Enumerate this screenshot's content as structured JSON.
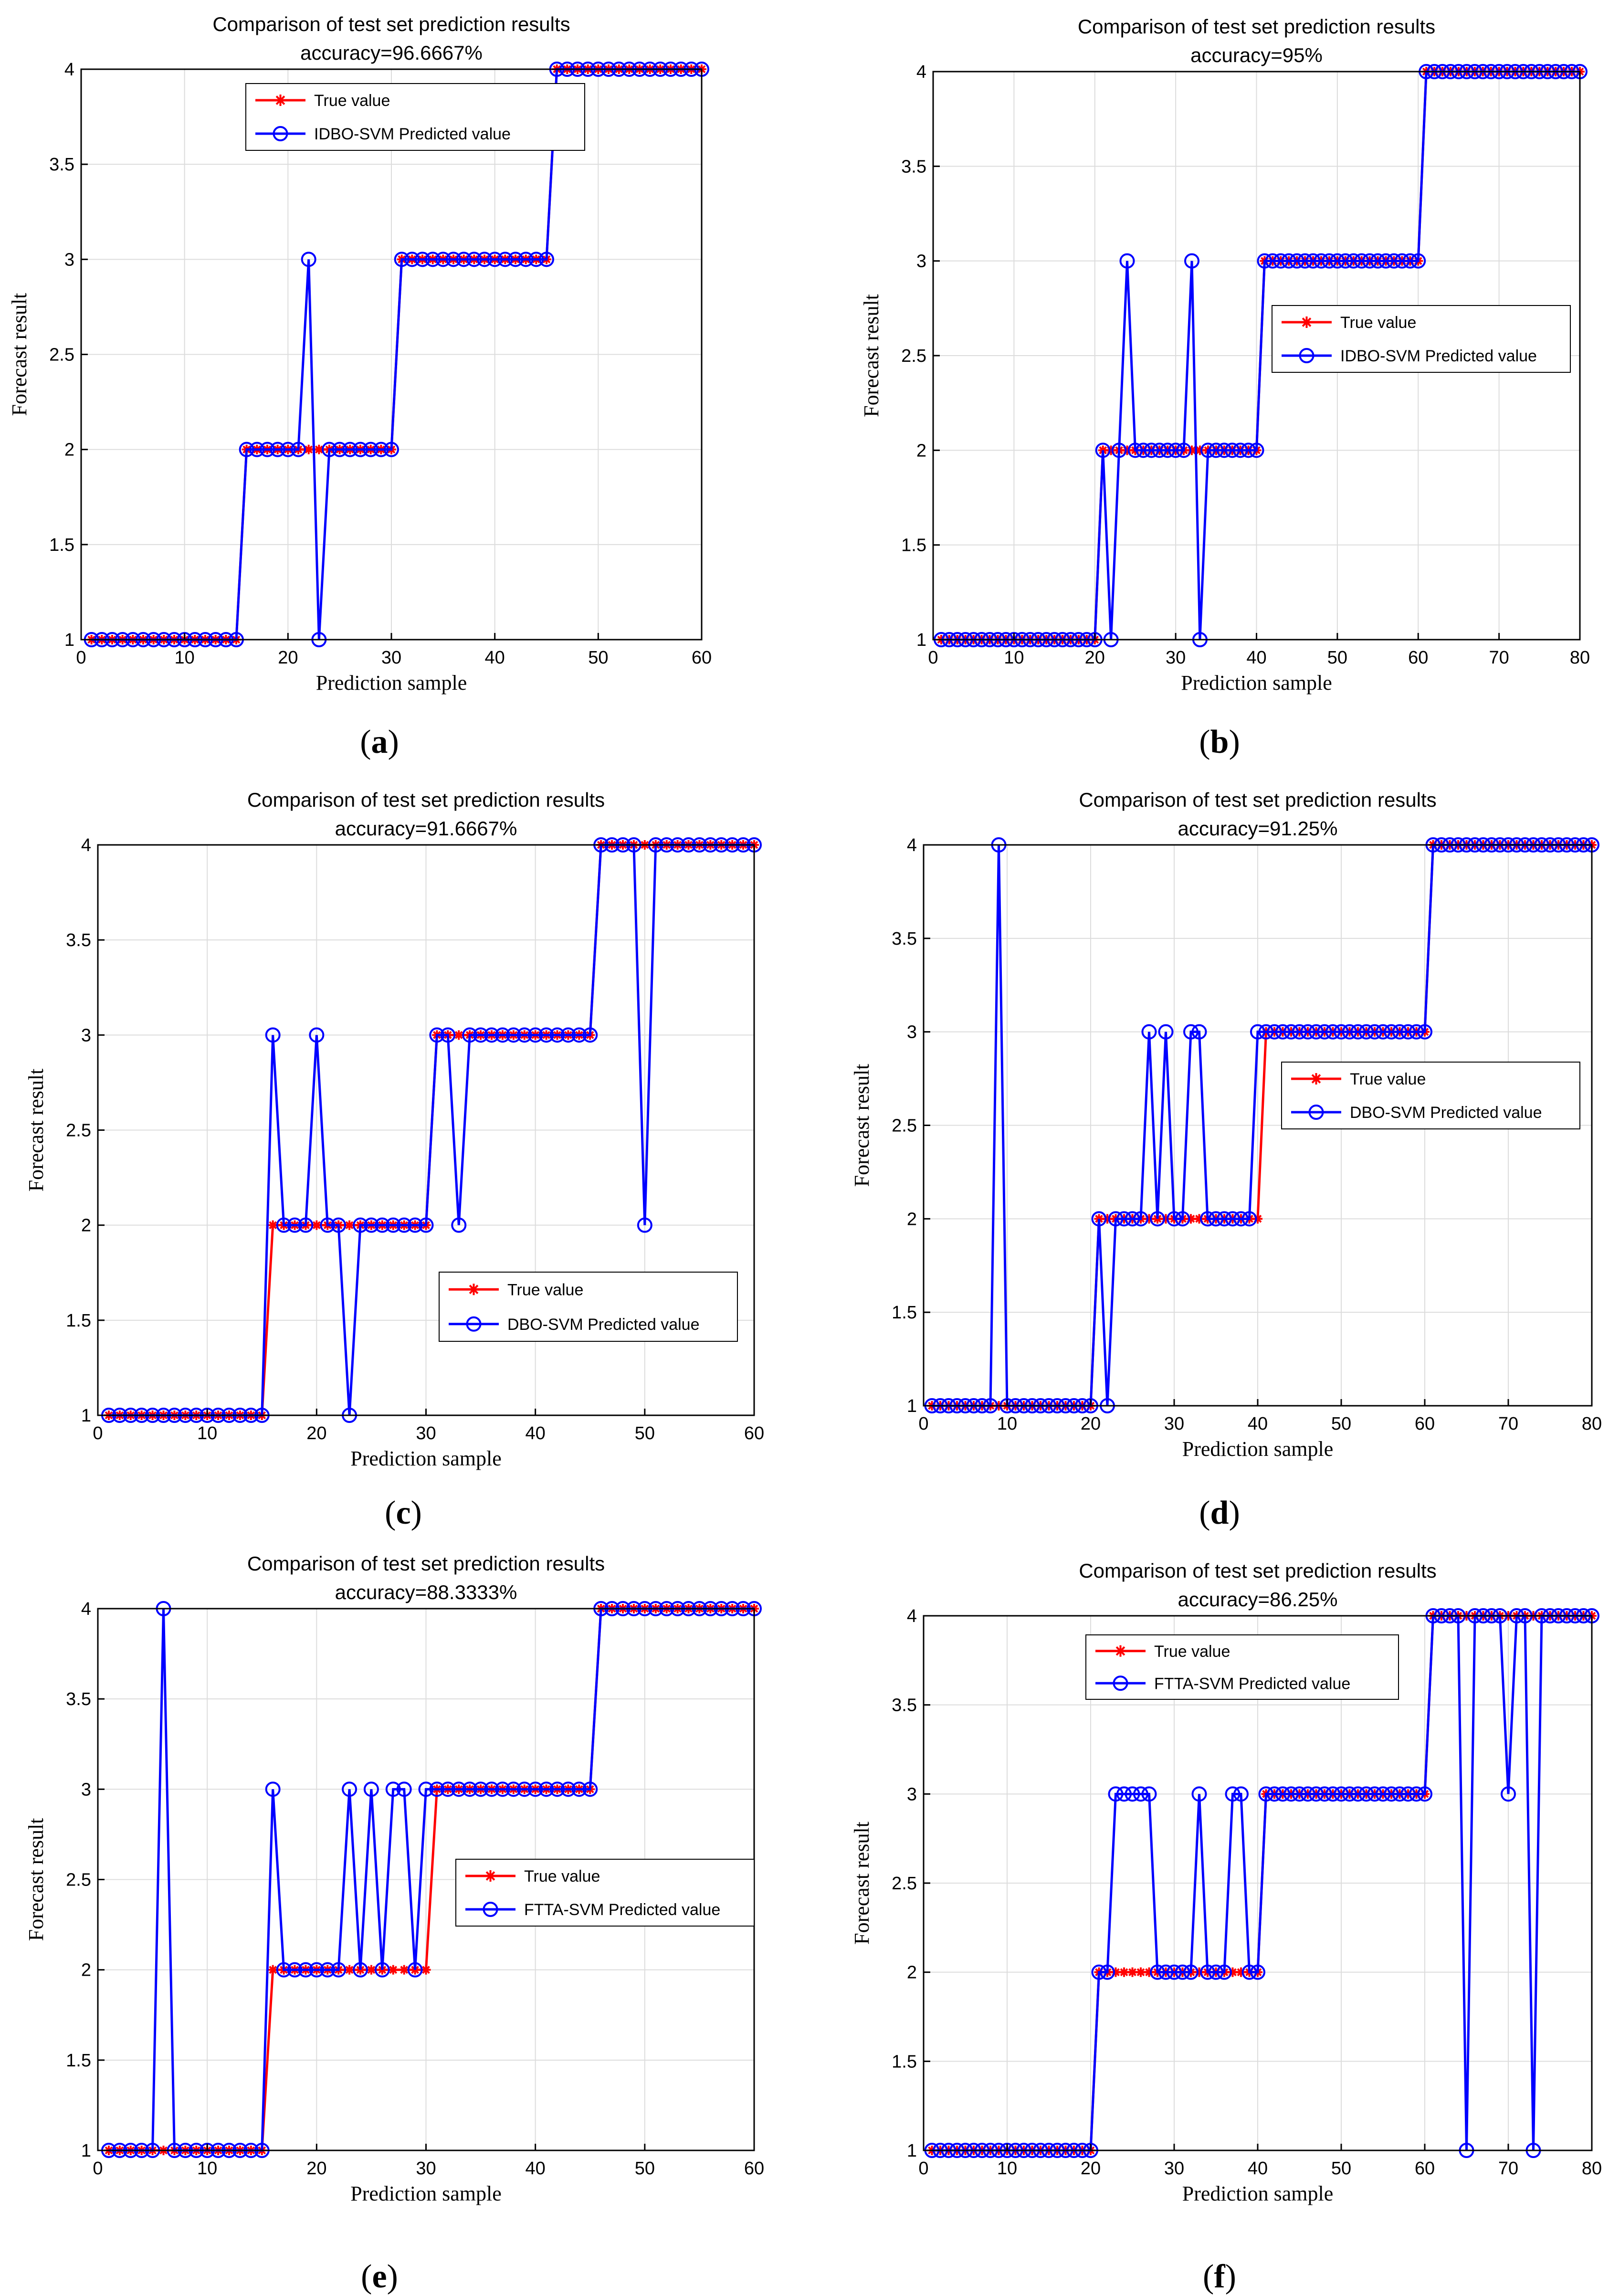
{
  "colors": {
    "true": "#ff0000",
    "pred": "#0000ff",
    "grid": "#dcdcdc",
    "axis": "#000000"
  },
  "chart_data": [
    {
      "type": "line",
      "caption_letter": "a",
      "title": "Comparison of test set prediction results",
      "subtitle": "accuracy=96.6667%",
      "xlabel": "Prediction sample",
      "ylabel": "Forecast result",
      "xlim": [
        0,
        60
      ],
      "ylim": [
        1,
        4
      ],
      "xticks": [
        0,
        10,
        20,
        30,
        40,
        50,
        60
      ],
      "yticks": [
        1,
        1.5,
        2,
        2.5,
        3,
        3.5,
        4
      ],
      "legend_position": "top-center",
      "series": [
        {
          "name": "True value",
          "values": [
            1,
            1,
            1,
            1,
            1,
            1,
            1,
            1,
            1,
            1,
            1,
            1,
            1,
            1,
            1,
            2,
            2,
            2,
            2,
            2,
            2,
            2,
            2,
            2,
            2,
            2,
            2,
            2,
            2,
            2,
            3,
            3,
            3,
            3,
            3,
            3,
            3,
            3,
            3,
            3,
            3,
            3,
            3,
            3,
            3,
            4,
            4,
            4,
            4,
            4,
            4,
            4,
            4,
            4,
            4,
            4,
            4,
            4,
            4,
            4
          ]
        },
        {
          "name": "IDBO-SVM Predicted value",
          "values": [
            1,
            1,
            1,
            1,
            1,
            1,
            1,
            1,
            1,
            1,
            1,
            1,
            1,
            1,
            1,
            2,
            2,
            2,
            2,
            2,
            2,
            3,
            1,
            2,
            2,
            2,
            2,
            2,
            2,
            2,
            3,
            3,
            3,
            3,
            3,
            3,
            3,
            3,
            3,
            3,
            3,
            3,
            3,
            3,
            3,
            4,
            4,
            4,
            4,
            4,
            4,
            4,
            4,
            4,
            4,
            4,
            4,
            4,
            4,
            4
          ]
        }
      ]
    },
    {
      "type": "line",
      "caption_letter": "b",
      "title": "Comparison of test set prediction results",
      "subtitle": "accuracy=95%",
      "xlabel": "Prediction sample",
      "ylabel": "Forecast result",
      "xlim": [
        0,
        80
      ],
      "ylim": [
        1,
        4
      ],
      "xticks": [
        0,
        10,
        20,
        30,
        40,
        50,
        60,
        70,
        80
      ],
      "yticks": [
        1,
        1.5,
        2,
        2.5,
        3,
        3.5,
        4
      ],
      "legend_position": "center-right",
      "series": [
        {
          "name": "True value",
          "values": [
            1,
            1,
            1,
            1,
            1,
            1,
            1,
            1,
            1,
            1,
            1,
            1,
            1,
            1,
            1,
            1,
            1,
            1,
            1,
            1,
            2,
            2,
            2,
            2,
            2,
            2,
            2,
            2,
            2,
            2,
            2,
            2,
            2,
            2,
            2,
            2,
            2,
            2,
            2,
            2,
            3,
            3,
            3,
            3,
            3,
            3,
            3,
            3,
            3,
            3,
            3,
            3,
            3,
            3,
            3,
            3,
            3,
            3,
            3,
            3,
            4,
            4,
            4,
            4,
            4,
            4,
            4,
            4,
            4,
            4,
            4,
            4,
            4,
            4,
            4,
            4,
            4,
            4,
            4,
            4
          ]
        },
        {
          "name": "IDBO-SVM Predicted value",
          "values": [
            1,
            1,
            1,
            1,
            1,
            1,
            1,
            1,
            1,
            1,
            1,
            1,
            1,
            1,
            1,
            1,
            1,
            1,
            1,
            1,
            2,
            1,
            2,
            3,
            2,
            2,
            2,
            2,
            2,
            2,
            2,
            3,
            1,
            2,
            2,
            2,
            2,
            2,
            2,
            2,
            3,
            3,
            3,
            3,
            3,
            3,
            3,
            3,
            3,
            3,
            3,
            3,
            3,
            3,
            3,
            3,
            3,
            3,
            3,
            3,
            4,
            4,
            4,
            4,
            4,
            4,
            4,
            4,
            4,
            4,
            4,
            4,
            4,
            4,
            4,
            4,
            4,
            4,
            4,
            4
          ]
        }
      ]
    },
    {
      "type": "line",
      "caption_letter": "c",
      "title": "Comparison of test set prediction results",
      "subtitle": "accuracy=91.6667%",
      "xlabel": "Prediction sample",
      "ylabel": "Forecast result",
      "xlim": [
        0,
        60
      ],
      "ylim": [
        1,
        4
      ],
      "xticks": [
        0,
        10,
        20,
        30,
        40,
        50,
        60
      ],
      "yticks": [
        1,
        1.5,
        2,
        2.5,
        3,
        3.5,
        4
      ],
      "legend_position": "lower-right",
      "series": [
        {
          "name": "True value",
          "values": [
            1,
            1,
            1,
            1,
            1,
            1,
            1,
            1,
            1,
            1,
            1,
            1,
            1,
            1,
            1,
            2,
            2,
            2,
            2,
            2,
            2,
            2,
            2,
            2,
            2,
            2,
            2,
            2,
            2,
            2,
            3,
            3,
            3,
            3,
            3,
            3,
            3,
            3,
            3,
            3,
            3,
            3,
            3,
            3,
            3,
            4,
            4,
            4,
            4,
            4,
            4,
            4,
            4,
            4,
            4,
            4,
            4,
            4,
            4,
            4
          ]
        },
        {
          "name": "DBO-SVM Predicted value",
          "values": [
            1,
            1,
            1,
            1,
            1,
            1,
            1,
            1,
            1,
            1,
            1,
            1,
            1,
            1,
            1,
            3,
            2,
            2,
            2,
            3,
            2,
            2,
            1,
            2,
            2,
            2,
            2,
            2,
            2,
            2,
            3,
            3,
            2,
            3,
            3,
            3,
            3,
            3,
            3,
            3,
            3,
            3,
            3,
            3,
            3,
            4,
            4,
            4,
            4,
            2,
            4,
            4,
            4,
            4,
            4,
            4,
            4,
            4,
            4,
            4
          ]
        }
      ]
    },
    {
      "type": "line",
      "caption_letter": "d",
      "title": "Comparison of test set prediction results",
      "subtitle": "accuracy=91.25%",
      "xlabel": "Prediction sample",
      "ylabel": "Forecast result",
      "xlim": [
        0,
        80
      ],
      "ylim": [
        1,
        4
      ],
      "xticks": [
        0,
        10,
        20,
        30,
        40,
        50,
        60,
        70,
        80
      ],
      "yticks": [
        1,
        1.5,
        2,
        2.5,
        3,
        3.5,
        4
      ],
      "legend_position": "center-right",
      "series": [
        {
          "name": "True value",
          "values": [
            1,
            1,
            1,
            1,
            1,
            1,
            1,
            1,
            1,
            1,
            1,
            1,
            1,
            1,
            1,
            1,
            1,
            1,
            1,
            1,
            2,
            2,
            2,
            2,
            2,
            2,
            2,
            2,
            2,
            2,
            2,
            2,
            2,
            2,
            2,
            2,
            2,
            2,
            2,
            2,
            3,
            3,
            3,
            3,
            3,
            3,
            3,
            3,
            3,
            3,
            3,
            3,
            3,
            3,
            3,
            3,
            3,
            3,
            3,
            3,
            4,
            4,
            4,
            4,
            4,
            4,
            4,
            4,
            4,
            4,
            4,
            4,
            4,
            4,
            4,
            4,
            4,
            4,
            4,
            4
          ]
        },
        {
          "name": "DBO-SVM Predicted value",
          "values": [
            1,
            1,
            1,
            1,
            1,
            1,
            1,
            1,
            4,
            1,
            1,
            1,
            1,
            1,
            1,
            1,
            1,
            1,
            1,
            1,
            2,
            1,
            2,
            2,
            2,
            2,
            3,
            2,
            3,
            2,
            2,
            3,
            3,
            2,
            2,
            2,
            2,
            2,
            2,
            3,
            3,
            3,
            3,
            3,
            3,
            3,
            3,
            3,
            3,
            3,
            3,
            3,
            3,
            3,
            3,
            3,
            3,
            3,
            3,
            3,
            4,
            4,
            4,
            4,
            4,
            4,
            4,
            4,
            4,
            4,
            4,
            4,
            4,
            4,
            4,
            4,
            4,
            4,
            4,
            4
          ]
        }
      ]
    },
    {
      "type": "line",
      "caption_letter": "e",
      "title": "Comparison of test set prediction results",
      "subtitle": "accuracy=88.3333%",
      "xlabel": "Prediction sample",
      "ylabel": "Forecast result",
      "xlim": [
        0,
        60
      ],
      "ylim": [
        1,
        4
      ],
      "xticks": [
        0,
        10,
        20,
        30,
        40,
        50,
        60
      ],
      "yticks": [
        1,
        1.5,
        2,
        2.5,
        3,
        3.5,
        4
      ],
      "legend_position": "center-right",
      "series": [
        {
          "name": "True value",
          "values": [
            1,
            1,
            1,
            1,
            1,
            1,
            1,
            1,
            1,
            1,
            1,
            1,
            1,
            1,
            1,
            2,
            2,
            2,
            2,
            2,
            2,
            2,
            2,
            2,
            2,
            2,
            2,
            2,
            2,
            2,
            3,
            3,
            3,
            3,
            3,
            3,
            3,
            3,
            3,
            3,
            3,
            3,
            3,
            3,
            3,
            4,
            4,
            4,
            4,
            4,
            4,
            4,
            4,
            4,
            4,
            4,
            4,
            4,
            4,
            4
          ]
        },
        {
          "name": "FTTA-SVM Predicted value",
          "values": [
            1,
            1,
            1,
            1,
            1,
            4,
            1,
            1,
            1,
            1,
            1,
            1,
            1,
            1,
            1,
            3,
            2,
            2,
            2,
            2,
            2,
            2,
            3,
            2,
            3,
            2,
            3,
            3,
            2,
            3,
            3,
            3,
            3,
            3,
            3,
            3,
            3,
            3,
            3,
            3,
            3,
            3,
            3,
            3,
            3,
            4,
            4,
            4,
            4,
            4,
            4,
            4,
            4,
            4,
            4,
            4,
            4,
            4,
            4,
            4
          ]
        }
      ]
    },
    {
      "type": "line",
      "caption_letter": "f",
      "title": "Comparison of test set prediction results",
      "subtitle": "accuracy=86.25%",
      "xlabel": "Prediction sample",
      "ylabel": "Forecast result",
      "xlim": [
        0,
        80
      ],
      "ylim": [
        1,
        4
      ],
      "xticks": [
        0,
        10,
        20,
        30,
        40,
        50,
        60,
        70,
        80
      ],
      "yticks": [
        1,
        1.5,
        2,
        2.5,
        3,
        3.5,
        4
      ],
      "legend_position": "top-left",
      "series": [
        {
          "name": "True value",
          "values": [
            1,
            1,
            1,
            1,
            1,
            1,
            1,
            1,
            1,
            1,
            1,
            1,
            1,
            1,
            1,
            1,
            1,
            1,
            1,
            1,
            2,
            2,
            2,
            2,
            2,
            2,
            2,
            2,
            2,
            2,
            2,
            2,
            2,
            2,
            2,
            2,
            2,
            2,
            2,
            2,
            3,
            3,
            3,
            3,
            3,
            3,
            3,
            3,
            3,
            3,
            3,
            3,
            3,
            3,
            3,
            3,
            3,
            3,
            3,
            3,
            4,
            4,
            4,
            4,
            4,
            4,
            4,
            4,
            4,
            4,
            4,
            4,
            4,
            4,
            4,
            4,
            4,
            4,
            4,
            4
          ]
        },
        {
          "name": "FTTA-SVM Predicted value",
          "values": [
            1,
            1,
            1,
            1,
            1,
            1,
            1,
            1,
            1,
            1,
            1,
            1,
            1,
            1,
            1,
            1,
            1,
            1,
            1,
            1,
            2,
            2,
            3,
            3,
            3,
            3,
            3,
            2,
            2,
            2,
            2,
            2,
            3,
            2,
            2,
            2,
            3,
            3,
            2,
            2,
            3,
            3,
            3,
            3,
            3,
            3,
            3,
            3,
            3,
            3,
            3,
            3,
            3,
            3,
            3,
            3,
            3,
            3,
            3,
            3,
            4,
            4,
            4,
            4,
            1,
            4,
            4,
            4,
            4,
            3,
            4,
            4,
            1,
            4,
            4,
            4,
            4,
            4,
            4,
            4
          ]
        }
      ]
    }
  ]
}
